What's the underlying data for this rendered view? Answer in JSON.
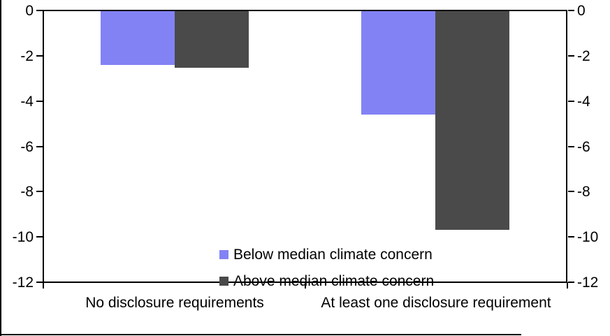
{
  "chart_data": {
    "type": "bar",
    "categories": [
      "No disclosure requirements",
      "At least one disclosure requirement"
    ],
    "series": [
      {
        "name": "Below median climate concern",
        "color": "#8282F5",
        "values": [
          -2.4,
          -4.6
        ]
      },
      {
        "name": "Above median climate concern",
        "color": "#4A4A4A",
        "values": [
          -2.5,
          -9.7
        ]
      }
    ],
    "y_ticks": [
      0,
      -2,
      -4,
      -6,
      -8,
      -10,
      -12
    ],
    "y_tick_labels": [
      "0",
      "-2",
      "-4",
      "-6",
      "-8",
      "-10",
      "-12"
    ],
    "ylim": [
      -12,
      0
    ],
    "dual_axis": true,
    "grid": false,
    "legend_position": "inside-bottom-center",
    "axis_color": "#000000",
    "background_color": "#FFFFFF"
  }
}
